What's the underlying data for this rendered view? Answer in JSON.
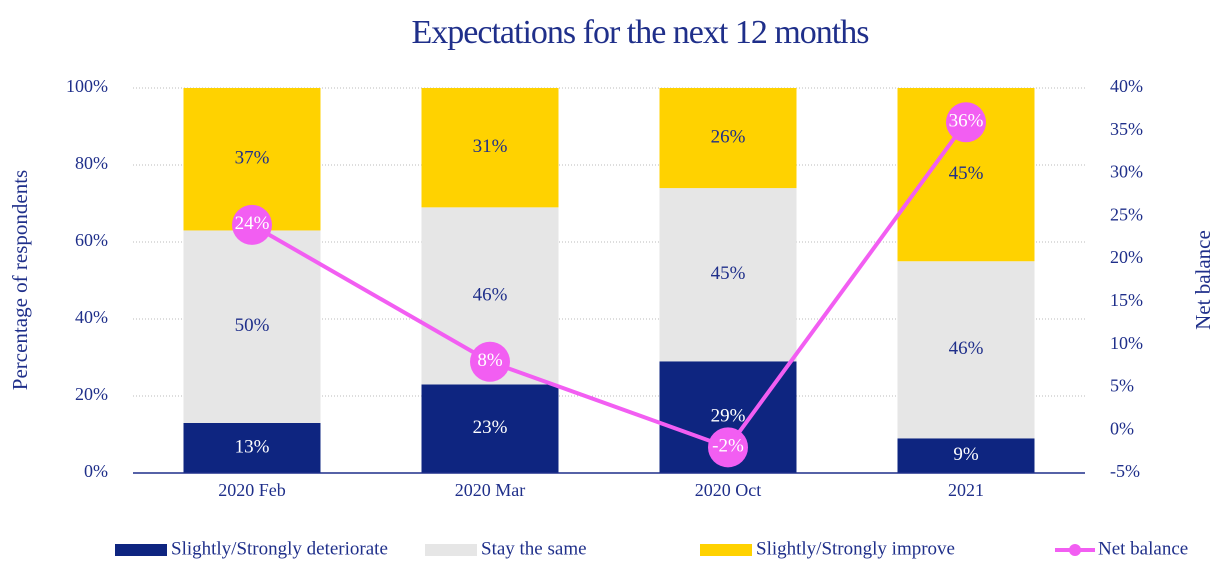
{
  "chart_data": {
    "type": "bar",
    "stacked": true,
    "title": "Expectations for the next 12 months",
    "y_label": "Percentage of respondents",
    "y2_label": "Net balance",
    "categories": [
      "2020 Feb",
      "2020 Mar",
      "2020 Oct",
      "2021"
    ],
    "series": [
      {
        "name": "Slightly/Strongly deteriorate",
        "color": "#0e2580",
        "label_color": "#ffffff",
        "values": [
          13,
          23,
          29,
          9
        ],
        "value_labels": [
          "13%",
          "23%",
          "29%",
          "9%"
        ]
      },
      {
        "name": "Stay the same",
        "color": "#e6e6e6",
        "label_color": "#1f2f8a",
        "values": [
          50,
          46,
          45,
          46
        ],
        "value_labels": [
          "50%",
          "46%",
          "45%",
          "46%"
        ]
      },
      {
        "name": "Slightly/Strongly improve",
        "color": "#ffd200",
        "label_color": "#1f2f8a",
        "values": [
          37,
          31,
          26,
          45
        ],
        "value_labels": [
          "37%",
          "31%",
          "26%",
          "45%"
        ]
      },
      {
        "name": "Net balance",
        "type": "line",
        "axis": "y2",
        "color": "#f25ef2",
        "label_color": "#ffffff",
        "values": [
          24,
          8,
          -2,
          36
        ],
        "value_labels": [
          "24%",
          "8%",
          "-2%",
          "36%"
        ]
      }
    ],
    "ylim": [
      0,
      100
    ],
    "yticks": [
      {
        "value": 0,
        "label": "0%"
      },
      {
        "value": 20,
        "label": "20%"
      },
      {
        "value": 40,
        "label": "40%"
      },
      {
        "value": 60,
        "label": "60%"
      },
      {
        "value": 80,
        "label": "80%"
      },
      {
        "value": 100,
        "label": "100%"
      }
    ],
    "y2lim": [
      -5,
      40
    ],
    "y2ticks": [
      {
        "value": -5,
        "label": "-5%"
      },
      {
        "value": 0,
        "label": "0%"
      },
      {
        "value": 5,
        "label": "5%"
      },
      {
        "value": 10,
        "label": "10%"
      },
      {
        "value": 15,
        "label": "15%"
      },
      {
        "value": 20,
        "label": "20%"
      },
      {
        "value": 25,
        "label": "25%"
      },
      {
        "value": 30,
        "label": "30%"
      },
      {
        "value": 35,
        "label": "35%"
      },
      {
        "value": 40,
        "label": "40%"
      }
    ],
    "grid": true,
    "legend": "bottom"
  }
}
